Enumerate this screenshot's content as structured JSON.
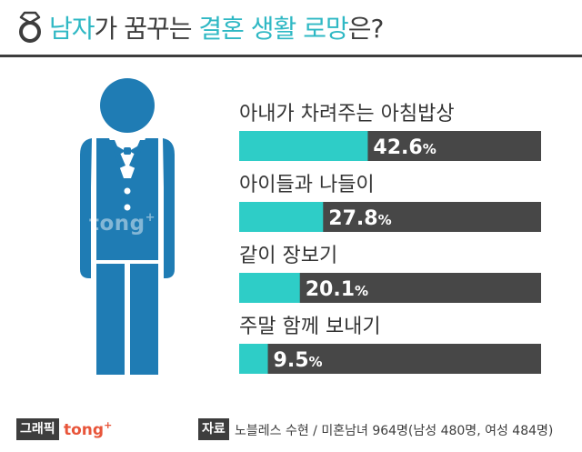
{
  "title": {
    "part1": "남자",
    "part2": "가 꿈꾸는 ",
    "part3": "결혼 생활 로망",
    "part4": "은?"
  },
  "watermark": {
    "text": "tong",
    "mark": "+"
  },
  "icons": {
    "title_icon": "ring-icon",
    "figure": "groom-figure-icon"
  },
  "colors": {
    "accent": "#2fb8c4",
    "bar_fill": "#2ecdc7",
    "bar_track": "#474747",
    "figure": "#1f7cb4",
    "brand": "#e8553a"
  },
  "chart_data": {
    "type": "bar",
    "orientation": "horizontal",
    "categories": [
      "아내가 차려주는 아침밥상",
      "아이들과 나들이",
      "같이 장보기",
      "주말 함께 보내기"
    ],
    "values": [
      42.6,
      27.8,
      20.1,
      9.5
    ],
    "value_labels": [
      "42.6",
      "27.8",
      "20.1",
      "9.5"
    ],
    "unit": "%",
    "xlim": [
      0,
      100
    ]
  },
  "footer": {
    "credit_label": "그래픽",
    "credit_brand": "tong",
    "credit_mark": "+",
    "source_label": "자료",
    "source_text": "노블레스 수현 / 미혼남녀 964명(남성 480명, 여성 484명)"
  }
}
